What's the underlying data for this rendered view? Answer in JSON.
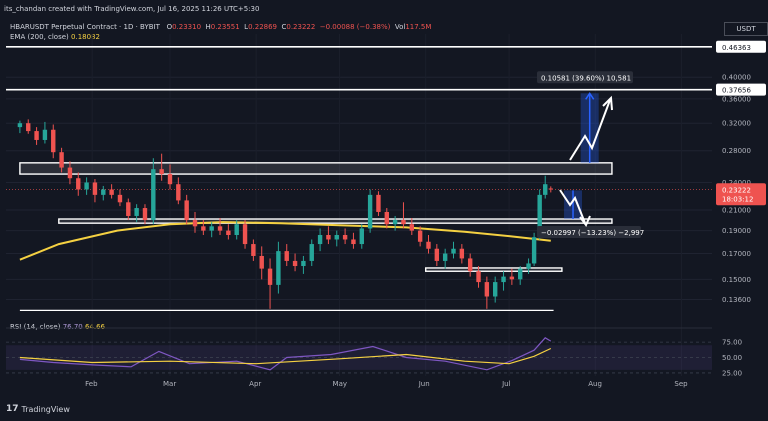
{
  "header": {
    "created": "its_chandan created with TradingView.com, Jul 16, 2025 11:26 UTC+5:30",
    "symbol": "HBARUSDT Perpetual Contract · 1D · BYBIT",
    "open_label": "O",
    "open": "0.23310",
    "high_label": "H",
    "high": "0.23551",
    "low_label": "L",
    "low": "0.22869",
    "close_label": "C",
    "close": "0.23222",
    "change": "−0.00088 (−0.38%)",
    "vol_label": "Vol",
    "vol": "117.5M",
    "ema_label": "EMA (200, close)",
    "ema_value": "0.18082",
    "currency": "USDT",
    "rsi_label": "RSI (14, close)",
    "rsi_value_a": "76.70",
    "rsi_value_b": "64.66",
    "brand": "TradingView",
    "colors": {
      "bg": "#131722",
      "up": "#26a69a",
      "down": "#ef5350",
      "ema": "#f5d142",
      "rsi": "#7e57c2",
      "arrow": "#2962ff"
    }
  },
  "chart_data": {
    "type": "candlestick",
    "price_axis_ticks": [
      0.4,
      0.36,
      0.32,
      0.28,
      0.24,
      0.21,
      0.19,
      0.17,
      0.15,
      0.136
    ],
    "price_axis_labels": [
      "0.40000",
      "0.36000",
      "0.32000",
      "0.28000",
      "0.24000",
      "0.21000",
      "0.19000",
      "0.17000",
      "0.15000",
      "0.13600"
    ],
    "x_labels": [
      "Feb",
      "Mar",
      "Apr",
      "May",
      "Jun",
      "Jul",
      "Aug",
      "Sep"
    ],
    "x_dates": [
      "2025-02-01",
      "2025-03-01",
      "2025-04-01",
      "2025-05-01",
      "2025-06-01",
      "2025-07-01",
      "2025-08-01",
      "2025-09-01"
    ],
    "price_tags": [
      {
        "price": 0.46363,
        "label": "0.46363",
        "style": "line"
      },
      {
        "price": 0.37656,
        "label": "0.37656",
        "style": "line"
      },
      {
        "price": 0.23222,
        "label": "0.23222",
        "sub": "18:03:12",
        "style": "current"
      }
    ],
    "zones": [
      {
        "low": 0.25,
        "high": 0.264,
        "from": "2025-01-06",
        "to": "2025-08-07"
      },
      {
        "low": 0.197,
        "high": 0.201,
        "from": "2025-01-20",
        "to": "2025-08-07"
      },
      {
        "low": 0.156,
        "high": 0.1585,
        "from": "2025-06-01",
        "to": "2025-07-20"
      }
    ],
    "support_line": {
      "price": 0.129,
      "from": "2025-01-06",
      "to": "2025-07-17"
    },
    "measure_up": {
      "text": "0.10581 (39.60%) 10,581",
      "low": 0.264,
      "high": 0.37
    },
    "measure_down": {
      "text": "−0.02997 (−13.23%) −2,997",
      "low": 0.201,
      "high": 0.231
    },
    "candles": [
      {
        "d": "2025-01-06",
        "o": 0.314,
        "h": 0.324,
        "l": 0.305,
        "c": 0.32
      },
      {
        "d": "2025-01-09",
        "o": 0.32,
        "h": 0.326,
        "l": 0.304,
        "c": 0.308
      },
      {
        "d": "2025-01-12",
        "o": 0.308,
        "h": 0.314,
        "l": 0.288,
        "c": 0.295
      },
      {
        "d": "2025-01-15",
        "o": 0.295,
        "h": 0.322,
        "l": 0.29,
        "c": 0.31
      },
      {
        "d": "2025-01-18",
        "o": 0.31,
        "h": 0.318,
        "l": 0.27,
        "c": 0.278
      },
      {
        "d": "2025-01-21",
        "o": 0.278,
        "h": 0.284,
        "l": 0.252,
        "c": 0.258
      },
      {
        "d": "2025-01-24",
        "o": 0.258,
        "h": 0.266,
        "l": 0.238,
        "c": 0.245
      },
      {
        "d": "2025-01-27",
        "o": 0.245,
        "h": 0.252,
        "l": 0.225,
        "c": 0.232
      },
      {
        "d": "2025-01-30",
        "o": 0.232,
        "h": 0.246,
        "l": 0.226,
        "c": 0.24
      },
      {
        "d": "2025-02-02",
        "o": 0.24,
        "h": 0.244,
        "l": 0.218,
        "c": 0.226
      },
      {
        "d": "2025-02-05",
        "o": 0.226,
        "h": 0.236,
        "l": 0.22,
        "c": 0.232
      },
      {
        "d": "2025-02-08",
        "o": 0.232,
        "h": 0.238,
        "l": 0.222,
        "c": 0.226
      },
      {
        "d": "2025-02-11",
        "o": 0.226,
        "h": 0.232,
        "l": 0.214,
        "c": 0.218
      },
      {
        "d": "2025-02-14",
        "o": 0.218,
        "h": 0.222,
        "l": 0.2,
        "c": 0.204
      },
      {
        "d": "2025-02-17",
        "o": 0.204,
        "h": 0.216,
        "l": 0.198,
        "c": 0.212
      },
      {
        "d": "2025-02-20",
        "o": 0.212,
        "h": 0.216,
        "l": 0.196,
        "c": 0.2
      },
      {
        "d": "2025-02-23",
        "o": 0.2,
        "h": 0.27,
        "l": 0.196,
        "c": 0.256
      },
      {
        "d": "2025-02-26",
        "o": 0.256,
        "h": 0.276,
        "l": 0.242,
        "c": 0.25
      },
      {
        "d": "2025-03-01",
        "o": 0.25,
        "h": 0.262,
        "l": 0.232,
        "c": 0.238
      },
      {
        "d": "2025-03-04",
        "o": 0.238,
        "h": 0.246,
        "l": 0.216,
        "c": 0.22
      },
      {
        "d": "2025-03-07",
        "o": 0.22,
        "h": 0.226,
        "l": 0.196,
        "c": 0.2
      },
      {
        "d": "2025-03-10",
        "o": 0.2,
        "h": 0.208,
        "l": 0.188,
        "c": 0.194
      },
      {
        "d": "2025-03-13",
        "o": 0.194,
        "h": 0.2,
        "l": 0.186,
        "c": 0.19
      },
      {
        "d": "2025-03-16",
        "o": 0.19,
        "h": 0.198,
        "l": 0.184,
        "c": 0.194
      },
      {
        "d": "2025-03-19",
        "o": 0.194,
        "h": 0.202,
        "l": 0.186,
        "c": 0.19
      },
      {
        "d": "2025-03-22",
        "o": 0.19,
        "h": 0.196,
        "l": 0.182,
        "c": 0.186
      },
      {
        "d": "2025-03-25",
        "o": 0.186,
        "h": 0.2,
        "l": 0.182,
        "c": 0.196
      },
      {
        "d": "2025-03-28",
        "o": 0.196,
        "h": 0.2,
        "l": 0.174,
        "c": 0.178
      },
      {
        "d": "2025-03-31",
        "o": 0.178,
        "h": 0.182,
        "l": 0.164,
        "c": 0.168
      },
      {
        "d": "2025-04-03",
        "o": 0.168,
        "h": 0.176,
        "l": 0.15,
        "c": 0.158
      },
      {
        "d": "2025-04-06",
        "o": 0.158,
        "h": 0.166,
        "l": 0.13,
        "c": 0.146
      },
      {
        "d": "2025-04-09",
        "o": 0.146,
        "h": 0.18,
        "l": 0.14,
        "c": 0.172
      },
      {
        "d": "2025-04-12",
        "o": 0.172,
        "h": 0.178,
        "l": 0.16,
        "c": 0.164
      },
      {
        "d": "2025-04-15",
        "o": 0.164,
        "h": 0.17,
        "l": 0.156,
        "c": 0.16
      },
      {
        "d": "2025-04-18",
        "o": 0.16,
        "h": 0.168,
        "l": 0.154,
        "c": 0.164
      },
      {
        "d": "2025-04-21",
        "o": 0.164,
        "h": 0.182,
        "l": 0.16,
        "c": 0.178
      },
      {
        "d": "2025-04-24",
        "o": 0.178,
        "h": 0.192,
        "l": 0.172,
        "c": 0.186
      },
      {
        "d": "2025-04-27",
        "o": 0.186,
        "h": 0.194,
        "l": 0.178,
        "c": 0.182
      },
      {
        "d": "2025-04-30",
        "o": 0.182,
        "h": 0.19,
        "l": 0.176,
        "c": 0.186
      },
      {
        "d": "2025-05-03",
        "o": 0.186,
        "h": 0.192,
        "l": 0.178,
        "c": 0.182
      },
      {
        "d": "2025-05-06",
        "o": 0.182,
        "h": 0.188,
        "l": 0.174,
        "c": 0.178
      },
      {
        "d": "2025-05-09",
        "o": 0.178,
        "h": 0.196,
        "l": 0.174,
        "c": 0.192
      },
      {
        "d": "2025-05-12",
        "o": 0.192,
        "h": 0.232,
        "l": 0.188,
        "c": 0.226
      },
      {
        "d": "2025-05-15",
        "o": 0.226,
        "h": 0.23,
        "l": 0.204,
        "c": 0.208
      },
      {
        "d": "2025-05-18",
        "o": 0.208,
        "h": 0.212,
        "l": 0.192,
        "c": 0.196
      },
      {
        "d": "2025-05-21",
        "o": 0.196,
        "h": 0.204,
        "l": 0.19,
        "c": 0.2
      },
      {
        "d": "2025-05-24",
        "o": 0.2,
        "h": 0.218,
        "l": 0.192,
        "c": 0.196
      },
      {
        "d": "2025-05-27",
        "o": 0.196,
        "h": 0.202,
        "l": 0.186,
        "c": 0.19
      },
      {
        "d": "2025-05-30",
        "o": 0.19,
        "h": 0.194,
        "l": 0.176,
        "c": 0.18
      },
      {
        "d": "2025-06-02",
        "o": 0.18,
        "h": 0.186,
        "l": 0.17,
        "c": 0.174
      },
      {
        "d": "2025-06-05",
        "o": 0.174,
        "h": 0.178,
        "l": 0.16,
        "c": 0.164
      },
      {
        "d": "2025-06-08",
        "o": 0.164,
        "h": 0.174,
        "l": 0.158,
        "c": 0.17
      },
      {
        "d": "2025-06-11",
        "o": 0.17,
        "h": 0.18,
        "l": 0.166,
        "c": 0.174
      },
      {
        "d": "2025-06-14",
        "o": 0.174,
        "h": 0.178,
        "l": 0.162,
        "c": 0.166
      },
      {
        "d": "2025-06-17",
        "o": 0.166,
        "h": 0.17,
        "l": 0.152,
        "c": 0.156
      },
      {
        "d": "2025-06-20",
        "o": 0.156,
        "h": 0.16,
        "l": 0.144,
        "c": 0.148
      },
      {
        "d": "2025-06-23",
        "o": 0.148,
        "h": 0.152,
        "l": 0.13,
        "c": 0.138
      },
      {
        "d": "2025-06-26",
        "o": 0.138,
        "h": 0.152,
        "l": 0.134,
        "c": 0.148
      },
      {
        "d": "2025-06-29",
        "o": 0.148,
        "h": 0.156,
        "l": 0.142,
        "c": 0.152
      },
      {
        "d": "2025-07-02",
        "o": 0.152,
        "h": 0.158,
        "l": 0.146,
        "c": 0.15
      },
      {
        "d": "2025-07-05",
        "o": 0.15,
        "h": 0.16,
        "l": 0.146,
        "c": 0.158
      },
      {
        "d": "2025-07-08",
        "o": 0.158,
        "h": 0.166,
        "l": 0.154,
        "c": 0.162
      },
      {
        "d": "2025-07-10",
        "o": 0.162,
        "h": 0.188,
        "l": 0.16,
        "c": 0.184
      },
      {
        "d": "2025-07-12",
        "o": 0.184,
        "h": 0.232,
        "l": 0.182,
        "c": 0.226
      },
      {
        "d": "2025-07-14",
        "o": 0.226,
        "h": 0.248,
        "l": 0.222,
        "c": 0.238
      },
      {
        "d": "2025-07-16",
        "o": 0.2331,
        "h": 0.23551,
        "l": 0.22869,
        "c": 0.23222
      }
    ],
    "ema200": [
      {
        "d": "2025-01-06",
        "v": 0.165
      },
      {
        "d": "2025-01-20",
        "v": 0.178
      },
      {
        "d": "2025-02-10",
        "v": 0.19
      },
      {
        "d": "2025-03-01",
        "v": 0.196
      },
      {
        "d": "2025-03-20",
        "v": 0.198
      },
      {
        "d": "2025-04-10",
        "v": 0.197
      },
      {
        "d": "2025-05-01",
        "v": 0.195
      },
      {
        "d": "2025-05-25",
        "v": 0.193
      },
      {
        "d": "2025-06-15",
        "v": 0.189
      },
      {
        "d": "2025-07-01",
        "v": 0.185
      },
      {
        "d": "2025-07-16",
        "v": 0.18082
      }
    ],
    "rsi": {
      "ticks": [
        75,
        50,
        25
      ],
      "tick_labels": [
        "75.00",
        "50.00",
        "25.00"
      ],
      "band": [
        30,
        70
      ],
      "rsi_line": [
        {
          "d": "2025-01-06",
          "v": 47
        },
        {
          "d": "2025-01-18",
          "v": 42
        },
        {
          "d": "2025-02-01",
          "v": 38
        },
        {
          "d": "2025-02-15",
          "v": 35
        },
        {
          "d": "2025-02-25",
          "v": 60
        },
        {
          "d": "2025-03-08",
          "v": 40
        },
        {
          "d": "2025-03-25",
          "v": 44
        },
        {
          "d": "2025-04-06",
          "v": 30
        },
        {
          "d": "2025-04-12",
          "v": 50
        },
        {
          "d": "2025-04-28",
          "v": 55
        },
        {
          "d": "2025-05-13",
          "v": 68
        },
        {
          "d": "2025-05-25",
          "v": 50
        },
        {
          "d": "2025-06-08",
          "v": 44
        },
        {
          "d": "2025-06-23",
          "v": 30
        },
        {
          "d": "2025-07-02",
          "v": 45
        },
        {
          "d": "2025-07-10",
          "v": 62
        },
        {
          "d": "2025-07-14",
          "v": 82
        },
        {
          "d": "2025-07-16",
          "v": 76.7
        }
      ],
      "rsi_ma": [
        {
          "d": "2025-01-06",
          "v": 50
        },
        {
          "d": "2025-02-01",
          "v": 42
        },
        {
          "d": "2025-03-01",
          "v": 44
        },
        {
          "d": "2025-04-01",
          "v": 40
        },
        {
          "d": "2025-05-01",
          "v": 48
        },
        {
          "d": "2025-05-25",
          "v": 55
        },
        {
          "d": "2025-06-15",
          "v": 44
        },
        {
          "d": "2025-07-01",
          "v": 40
        },
        {
          "d": "2025-07-10",
          "v": 52
        },
        {
          "d": "2025-07-16",
          "v": 64.66
        }
      ]
    }
  }
}
